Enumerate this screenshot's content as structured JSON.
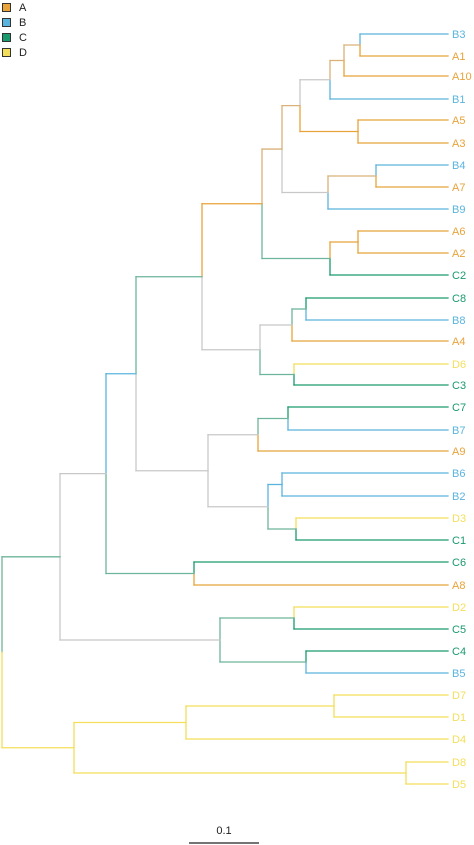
{
  "legend": [
    {
      "label": "A",
      "color": "#e8a33a"
    },
    {
      "label": "B",
      "color": "#5ab4de"
    },
    {
      "label": "C",
      "color": "#1a9a6c"
    },
    {
      "label": "D",
      "color": "#f4df5a"
    }
  ],
  "colors": {
    "A": "#e8a33a",
    "B": "#5ab4de",
    "C": "#1a9a6c",
    "D": "#f4df5a",
    "mixed": "#c8c8c8",
    "ab": "#d9b27a",
    "ac": "#6db59a",
    "ad": "#e8c86a"
  },
  "leaves": [
    {
      "label": "B3",
      "group": "B"
    },
    {
      "label": "A1",
      "group": "A"
    },
    {
      "label": "A10",
      "group": "A"
    },
    {
      "label": "B1",
      "group": "B"
    },
    {
      "label": "A5",
      "group": "A"
    },
    {
      "label": "A3",
      "group": "A"
    },
    {
      "label": "B4",
      "group": "B"
    },
    {
      "label": "A7",
      "group": "A"
    },
    {
      "label": "B9",
      "group": "B"
    },
    {
      "label": "A6",
      "group": "A"
    },
    {
      "label": "A2",
      "group": "A"
    },
    {
      "label": "C2",
      "group": "C"
    },
    {
      "label": "C8",
      "group": "C"
    },
    {
      "label": "B8",
      "group": "B"
    },
    {
      "label": "A4",
      "group": "A"
    },
    {
      "label": "D6",
      "group": "D"
    },
    {
      "label": "C3",
      "group": "C"
    },
    {
      "label": "C7",
      "group": "C"
    },
    {
      "label": "B7",
      "group": "B"
    },
    {
      "label": "A9",
      "group": "A"
    },
    {
      "label": "B6",
      "group": "B"
    },
    {
      "label": "B2",
      "group": "B"
    },
    {
      "label": "D3",
      "group": "D"
    },
    {
      "label": "C1",
      "group": "C"
    },
    {
      "label": "C6",
      "group": "C"
    },
    {
      "label": "A8",
      "group": "A"
    },
    {
      "label": "D2",
      "group": "D"
    },
    {
      "label": "C5",
      "group": "C"
    },
    {
      "label": "C4",
      "group": "C"
    },
    {
      "label": "B5",
      "group": "B"
    },
    {
      "label": "D7",
      "group": "D"
    },
    {
      "label": "D1",
      "group": "D"
    },
    {
      "label": "D4",
      "group": "D"
    },
    {
      "label": "D8",
      "group": "D"
    },
    {
      "label": "D5",
      "group": "D"
    }
  ],
  "scale_bar": {
    "label": "0.1"
  }
}
